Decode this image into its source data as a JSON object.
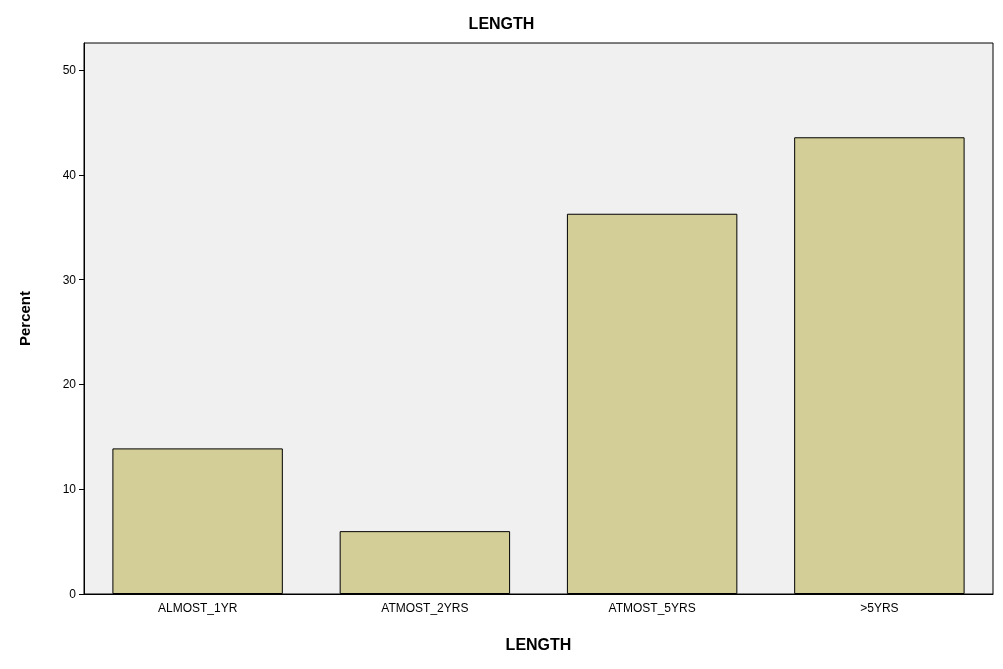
{
  "chart_data": {
    "type": "bar",
    "title": "LENGTH",
    "xlabel": "LENGTH",
    "ylabel": "Percent",
    "categories": [
      "ALMOST_1YR",
      "ATMOST_2YRS",
      "ATMOST_5YRS",
      ">5YRS"
    ],
    "values": [
      13.9,
      6.0,
      36.3,
      43.6
    ],
    "color": "#d3ce97",
    "ylim": [
      0,
      52.6
    ],
    "yticks": [
      0,
      10,
      20,
      30,
      40,
      50
    ],
    "grid": false
  }
}
